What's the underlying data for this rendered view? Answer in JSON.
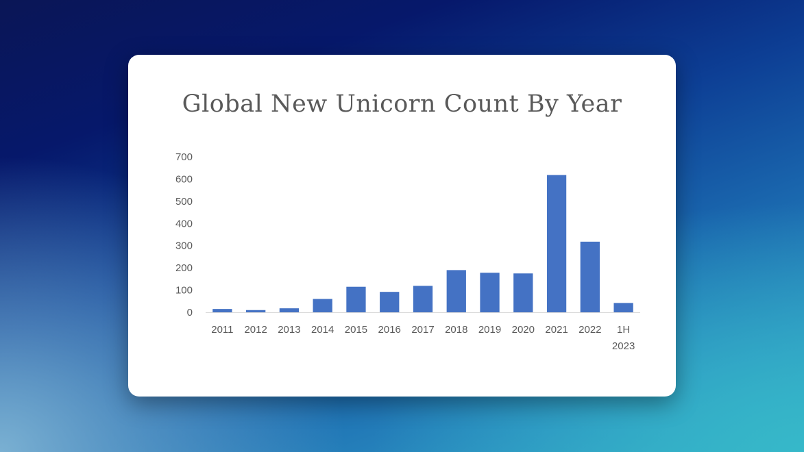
{
  "chart_data": {
    "type": "bar",
    "title": "Global New Unicorn Count By Year",
    "xlabel": "",
    "ylabel": "",
    "categories": [
      "2011",
      "2012",
      "2013",
      "2014",
      "2015",
      "2016",
      "2017",
      "2018",
      "2019",
      "2020",
      "2021",
      "2022",
      "1H 2023"
    ],
    "category_lines": [
      [
        "2011"
      ],
      [
        "2012"
      ],
      [
        "2013"
      ],
      [
        "2014"
      ],
      [
        "2015"
      ],
      [
        "2016"
      ],
      [
        "2017"
      ],
      [
        "2018"
      ],
      [
        "2019"
      ],
      [
        "2020"
      ],
      [
        "2021"
      ],
      [
        "2022"
      ],
      [
        "1H",
        "2023"
      ]
    ],
    "values": [
      15,
      10,
      18,
      60,
      115,
      92,
      119,
      190,
      178,
      175,
      618,
      318,
      42
    ],
    "ylim": [
      0,
      700
    ],
    "yticks": [
      "0",
      "100",
      "200",
      "300",
      "400",
      "500",
      "600",
      "700"
    ],
    "grid": false,
    "legend": "none",
    "bar_color": "#4472c4",
    "axis_color": "#d9d9d9",
    "text_color": "#595959"
  }
}
